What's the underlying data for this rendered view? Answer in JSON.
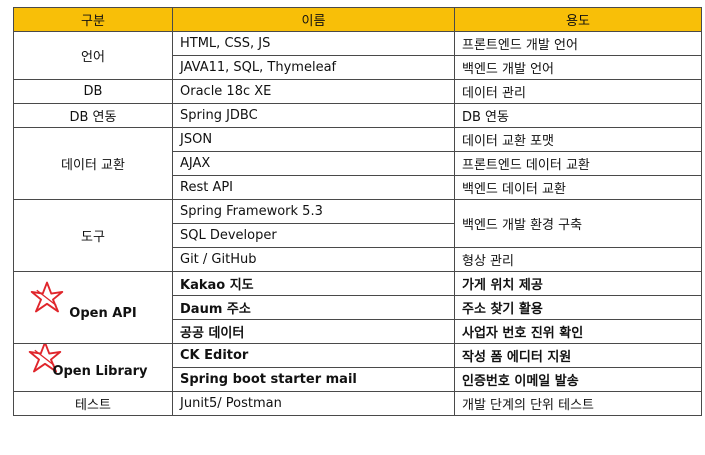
{
  "header": {
    "category": "구분",
    "name": "이름",
    "usage": "용도"
  },
  "rows": [
    {
      "category": "언어",
      "name": "HTML, CSS, JS",
      "usage": "프론트엔드 개발 언어"
    },
    {
      "category": "",
      "name": "JAVA11, SQL, Thymeleaf",
      "usage": "백엔드 개발 언어"
    },
    {
      "category": "DB",
      "name": "Oracle 18c XE",
      "usage": "데이터 관리"
    },
    {
      "category": "DB 연동",
      "name": "Spring JDBC",
      "usage": "DB 연동"
    },
    {
      "category": "데이터 교환",
      "name": "JSON",
      "usage": "데이터 교환 포맷"
    },
    {
      "category": "",
      "name": "AJAX",
      "usage": "프론트엔드 데이터 교환"
    },
    {
      "category": "",
      "name": "Rest API",
      "usage": "백엔드 데이터 교환"
    },
    {
      "category": "도구",
      "name": "Spring Framework 5.3",
      "usage": "백엔드 개발 환경 구축"
    },
    {
      "category": "",
      "name": "SQL Developer",
      "usage": ""
    },
    {
      "category": "",
      "name": "Git / GitHub",
      "usage": "형상 관리"
    },
    {
      "category": "Open API",
      "name": "Kakao 지도",
      "usage": "가게 위치 제공"
    },
    {
      "category": "",
      "name": "Daum 주소",
      "usage": "주소 찾기 활용"
    },
    {
      "category": "",
      "name": "공공 데이터",
      "usage": "사업자 번호 진위 확인"
    },
    {
      "category": "Open Library",
      "name": "CK Editor",
      "usage": "작성 폼 에디터 지원"
    },
    {
      "category": "",
      "name": "Spring boot starter mail",
      "usage": "인증번호 이메일 발송"
    },
    {
      "category": "테스트",
      "name": "Junit5/ Postman",
      "usage": "개발 단계의 단위 테스트"
    }
  ],
  "colors": {
    "header_bg": "#f8bf08",
    "star": "#e0252b",
    "border": "#4a4a4a"
  },
  "icons": {
    "star": "hand-drawn-star-icon"
  }
}
